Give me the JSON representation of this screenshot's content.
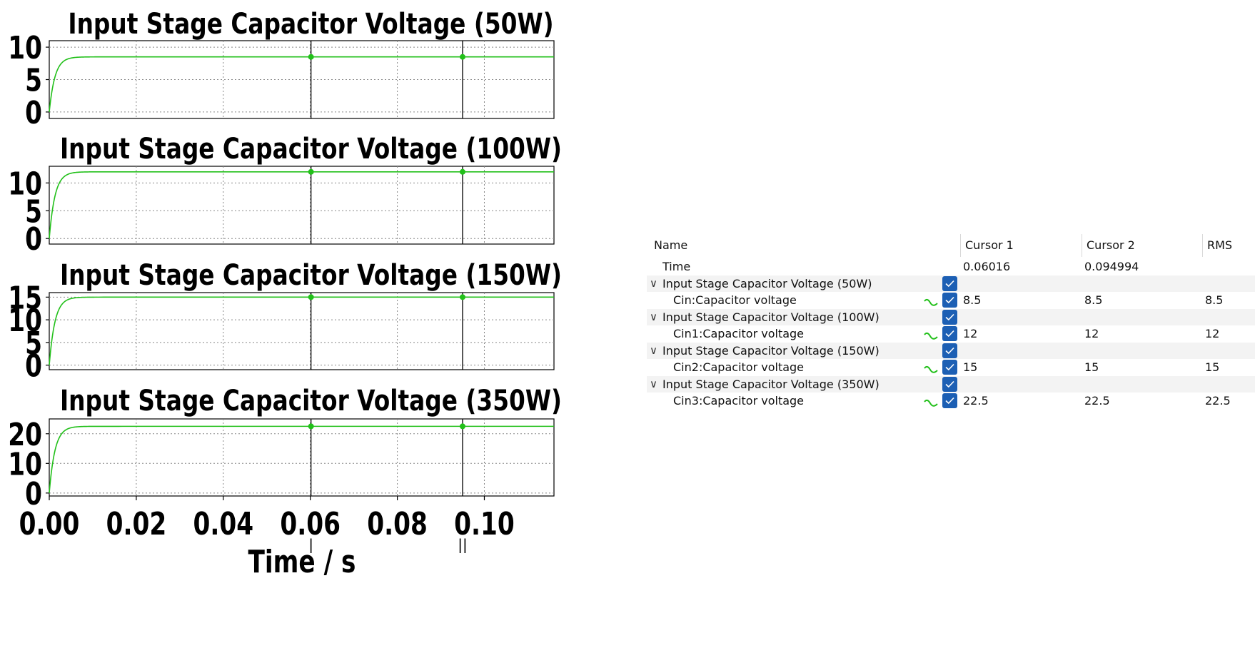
{
  "chart_data": [
    {
      "type": "line",
      "title": "Input Stage Capacitor Voltage (50W)",
      "ylim": [
        -1,
        11
      ],
      "yticks": [
        0,
        5,
        10
      ],
      "xlim": [
        0,
        0.116
      ],
      "series": [
        {
          "name": "Cin:Capacitor voltage",
          "steady_value": 8.5,
          "time_constant": 0.0013
        }
      ],
      "cursor_markers": [
        0.06016,
        0.094994
      ],
      "grid": true
    },
    {
      "type": "line",
      "title": "Input Stage Capacitor Voltage (100W)",
      "ylim": [
        -1,
        13
      ],
      "yticks": [
        0,
        5,
        10
      ],
      "xlim": [
        0,
        0.116
      ],
      "series": [
        {
          "name": "Cin1:Capacitor voltage",
          "steady_value": 12,
          "time_constant": 0.0013
        }
      ],
      "cursor_markers": [
        0.06016,
        0.094994
      ],
      "grid": true
    },
    {
      "type": "line",
      "title": "Input Stage Capacitor Voltage (150W)",
      "ylim": [
        -1,
        16
      ],
      "yticks": [
        0,
        5,
        10,
        15
      ],
      "xlim": [
        0,
        0.116
      ],
      "series": [
        {
          "name": "Cin2:Capacitor voltage",
          "steady_value": 15,
          "time_constant": 0.0013
        }
      ],
      "cursor_markers": [
        0.06016,
        0.094994
      ],
      "grid": true
    },
    {
      "type": "line",
      "title": "Input Stage Capacitor Voltage (350W)",
      "ylim": [
        -1,
        25
      ],
      "yticks": [
        0,
        10,
        20
      ],
      "xlim": [
        0,
        0.116
      ],
      "xticks": [
        "0.00",
        "0.02",
        "0.04",
        "0.06",
        "0.08",
        "0.10"
      ],
      "xlabel": "Time / s",
      "series": [
        {
          "name": "Cin3:Capacitor voltage",
          "steady_value": 22.5,
          "time_constant": 0.0013
        }
      ],
      "cursor_markers": [
        0.06016,
        0.094994
      ],
      "grid": true
    }
  ],
  "colors": {
    "trace": "#22c01a",
    "cursor": "#000000",
    "checkbox": "#1c5fb4",
    "row_shade": "#f3f3f3"
  },
  "cursor_labels": [
    "|",
    "||"
  ],
  "table": {
    "headers": {
      "name": "Name",
      "cursor1": "Cursor 1",
      "cursor2": "Cursor 2",
      "rms": "RMS"
    },
    "time_row": {
      "label": "Time",
      "cursor1": "0.06016",
      "cursor2": "0.094994"
    },
    "groups": [
      {
        "name": "Input Stage Capacitor Voltage (50W)",
        "signal": "Cin:Capacitor voltage",
        "cursor1": "8.5",
        "cursor2": "8.5",
        "rms": "8.5"
      },
      {
        "name": "Input Stage Capacitor Voltage (100W)",
        "signal": "Cin1:Capacitor voltage",
        "cursor1": "12",
        "cursor2": "12",
        "rms": "12"
      },
      {
        "name": "Input Stage Capacitor Voltage (150W)",
        "signal": "Cin2:Capacitor voltage",
        "cursor1": "15",
        "cursor2": "15",
        "rms": "15"
      },
      {
        "name": "Input Stage Capacitor Voltage (350W)",
        "signal": "Cin3:Capacitor voltage",
        "cursor1": "22.5",
        "cursor2": "22.5",
        "rms": "22.5"
      }
    ]
  }
}
